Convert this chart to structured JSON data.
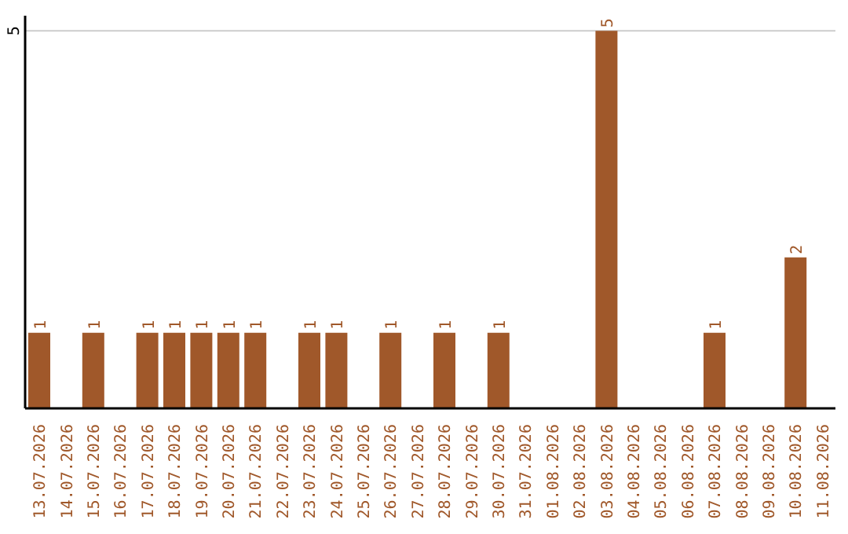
{
  "chart_data": {
    "type": "bar",
    "categories": [
      "13.07.2026",
      "14.07.2026",
      "15.07.2026",
      "16.07.2026",
      "17.07.2026",
      "18.07.2026",
      "19.07.2026",
      "20.07.2026",
      "21.07.2026",
      "22.07.2026",
      "23.07.2026",
      "24.07.2026",
      "25.07.2026",
      "26.07.2026",
      "27.07.2026",
      "28.07.2026",
      "29.07.2026",
      "30.07.2026",
      "31.07.2026",
      "01.08.2026",
      "02.08.2026",
      "03.08.2026",
      "04.08.2026",
      "05.08.2026",
      "06.08.2026",
      "07.08.2026",
      "08.08.2026",
      "09.08.2026",
      "10.08.2026",
      "11.08.2026"
    ],
    "values": [
      1,
      0,
      1,
      0,
      1,
      1,
      1,
      1,
      1,
      0,
      1,
      1,
      0,
      1,
      0,
      1,
      0,
      1,
      0,
      0,
      0,
      5,
      0,
      0,
      0,
      1,
      0,
      0,
      2,
      0
    ],
    "value_labels": [
      "1",
      null,
      "1",
      null,
      "1",
      "1",
      "1",
      "1",
      "1",
      null,
      "1",
      "1",
      null,
      "1",
      null,
      "1",
      null,
      "1",
      null,
      null,
      null,
      "5",
      null,
      null,
      null,
      "1",
      null,
      null,
      "2",
      null
    ],
    "color": "#a0582a",
    "ylim": [
      0,
      5.2
    ],
    "yticks": [
      5
    ],
    "grid": "y"
  }
}
